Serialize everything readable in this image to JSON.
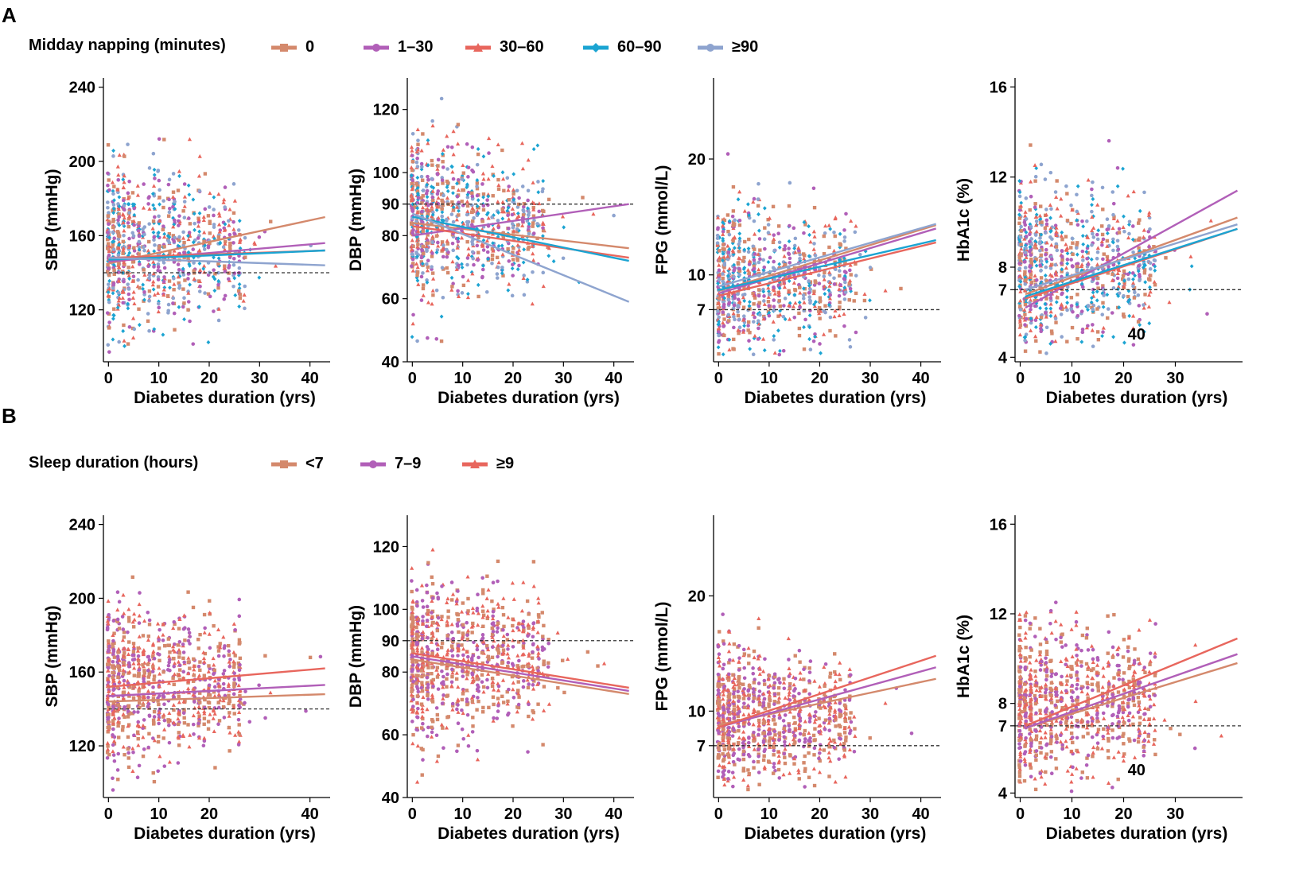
{
  "panels": {
    "A": {
      "label": "A",
      "legend_title": "Midday napping (minutes)",
      "groups": [
        {
          "name": "0",
          "color": "#d4896c",
          "marker": "square"
        },
        {
          "name": "1–30",
          "color": "#b15fb8",
          "marker": "circle"
        },
        {
          "name": "30–60",
          "color": "#e8665d",
          "marker": "triangle"
        },
        {
          "name": "60–90",
          "color": "#1ba4d2",
          "marker": "diamond"
        },
        {
          "name": "≥90",
          "color": "#8ea4cf",
          "marker": "circle"
        }
      ]
    },
    "B": {
      "label": "B",
      "legend_title": "Sleep duration (hours)",
      "groups": [
        {
          "name": "<7",
          "color": "#d4896c",
          "marker": "square"
        },
        {
          "name": "7–9",
          "color": "#b15fb8",
          "marker": "circle"
        },
        {
          "name": "≥9",
          "color": "#e8665d",
          "marker": "triangle"
        }
      ]
    }
  },
  "chart_data": [
    {
      "id": "A-SBP",
      "type": "scatter",
      "xlabel": "Diabetes duration (yrs)",
      "ylabel": "SBP (mmHg)",
      "xlim": [
        -1,
        44
      ],
      "ylim": [
        92,
        245
      ],
      "xticks": [
        0,
        10,
        20,
        30,
        40
      ],
      "yticks": [
        120,
        160,
        200,
        240
      ],
      "reference_y": 140,
      "lines": [
        [
          0,
          145,
          43,
          170
        ],
        [
          0,
          146,
          43,
          156
        ],
        [
          0,
          148,
          43,
          152
        ],
        [
          0,
          147,
          43,
          152
        ],
        [
          0,
          148,
          43,
          144
        ]
      ],
      "point_count": 900,
      "seed": 11,
      "point_dist": {
        "ymean": 153,
        "ysd": 22,
        "xmax": 43
      }
    },
    {
      "id": "A-DBP",
      "type": "scatter",
      "xlabel": "Diabetes duration (yrs)",
      "ylabel": "DBP (mmHg)",
      "xlim": [
        -1,
        44
      ],
      "ylim": [
        40,
        130
      ],
      "xticks": [
        0,
        10,
        20,
        30,
        40
      ],
      "yticks": [
        40,
        60,
        80,
        90,
        100,
        120
      ],
      "reference_y": 90,
      "lines": [
        [
          0,
          84,
          43,
          76
        ],
        [
          0,
          80,
          43,
          90
        ],
        [
          0,
          83,
          43,
          73
        ],
        [
          0,
          86,
          43,
          72
        ],
        [
          0,
          87,
          43,
          59
        ]
      ],
      "point_count": 900,
      "seed": 23,
      "point_dist": {
        "ymean": 84,
        "ysd": 13,
        "xmax": 43
      }
    },
    {
      "id": "A-FPG",
      "type": "scatter",
      "xlabel": "Diabetes duration (yrs)",
      "ylabel": "FPG (mmol/L)",
      "xlim": [
        -1,
        44
      ],
      "ylim": [
        2.5,
        27
      ],
      "xticks": [
        0,
        10,
        20,
        30,
        40
      ],
      "yticks": [
        7,
        10,
        20
      ],
      "reference_y": 7,
      "lines": [
        [
          0,
          8.6,
          43,
          14.3
        ],
        [
          0,
          8.4,
          43,
          14.0
        ],
        [
          0,
          8.2,
          43,
          12.8
        ],
        [
          0,
          8.7,
          43,
          13.0
        ],
        [
          0,
          9.0,
          43,
          14.4
        ]
      ],
      "point_count": 900,
      "seed": 37,
      "point_dist": {
        "ymean": 9.5,
        "ysd": 3.3,
        "xmax": 43
      }
    },
    {
      "id": "A-HbA1c",
      "type": "scatter",
      "xlabel": "Diabetes duration (yrs)",
      "ylabel": "HbA1c (%)",
      "xlim": [
        -1,
        43
      ],
      "ylim": [
        3.8,
        16.4
      ],
      "xticks": [
        0,
        10,
        20,
        30
      ],
      "yticks": [
        4,
        7,
        8,
        12,
        16
      ],
      "reference_y": 7,
      "extra_label": "40",
      "lines": [
        [
          1,
          6.8,
          42,
          10.2
        ],
        [
          1,
          6.2,
          42,
          11.4
        ],
        [
          1,
          6.6,
          42,
          9.7
        ],
        [
          1,
          6.7,
          42,
          9.7
        ],
        [
          1,
          7.0,
          42,
          9.9
        ]
      ],
      "point_count": 900,
      "seed": 51,
      "point_dist": {
        "ymean": 8.0,
        "ysd": 1.8,
        "xmax": 42
      }
    },
    {
      "id": "B-SBP",
      "type": "scatter",
      "xlabel": "Diabetes duration (yrs)",
      "ylabel": "SBP (mmHg)",
      "xlim": [
        -1,
        44
      ],
      "ylim": [
        92,
        245
      ],
      "xticks": [
        0,
        10,
        20,
        40
      ],
      "yticks": [
        120,
        160,
        200,
        240
      ],
      "reference_y": 140,
      "lines": [
        [
          0,
          144,
          43,
          148
        ],
        [
          0,
          147,
          43,
          153
        ],
        [
          0,
          152,
          43,
          162
        ]
      ],
      "point_count": 900,
      "seed": 67,
      "point_dist": {
        "ymean": 153,
        "ysd": 22,
        "xmax": 43
      }
    },
    {
      "id": "B-DBP",
      "type": "scatter",
      "xlabel": "Diabetes duration (yrs)",
      "ylabel": "DBP (mmHg)",
      "xlim": [
        -1,
        44
      ],
      "ylim": [
        40,
        130
      ],
      "xticks": [
        0,
        10,
        20,
        30,
        40
      ],
      "yticks": [
        40,
        60,
        80,
        90,
        100,
        120
      ],
      "reference_y": 90,
      "lines": [
        [
          0,
          84,
          43,
          73
        ],
        [
          0,
          85,
          43,
          74
        ],
        [
          0,
          86,
          43,
          75
        ]
      ],
      "point_count": 900,
      "seed": 79,
      "point_dist": {
        "ymean": 84,
        "ysd": 13,
        "xmax": 43
      }
    },
    {
      "id": "B-FPG",
      "type": "scatter",
      "xlabel": "Diabetes duration (yrs)",
      "ylabel": "FPG (mmol/L)",
      "xlim": [
        -1,
        44
      ],
      "ylim": [
        2.5,
        27
      ],
      "xticks": [
        0,
        10,
        20,
        30,
        40
      ],
      "yticks": [
        7,
        10,
        20
      ],
      "reference_y": 7,
      "lines": [
        [
          0,
          8.8,
          43,
          12.8
        ],
        [
          0,
          8.6,
          43,
          13.8
        ],
        [
          0,
          8.6,
          43,
          14.8
        ]
      ],
      "point_count": 900,
      "seed": 91,
      "point_dist": {
        "ymean": 9.5,
        "ysd": 3.3,
        "xmax": 43
      }
    },
    {
      "id": "B-HbA1c",
      "type": "scatter",
      "xlabel": "Diabetes duration (yrs)",
      "ylabel": "HbA1c (%)",
      "xlim": [
        -1,
        43
      ],
      "ylim": [
        3.8,
        16.4
      ],
      "xticks": [
        0,
        10,
        20,
        30
      ],
      "yticks": [
        4,
        7,
        8,
        12,
        16
      ],
      "reference_y": 7,
      "extra_label": "40",
      "lines": [
        [
          1,
          6.9,
          42,
          9.8
        ],
        [
          1,
          6.9,
          42,
          10.2
        ],
        [
          1,
          7.0,
          42,
          10.9
        ]
      ],
      "point_count": 900,
      "seed": 103,
      "point_dist": {
        "ymean": 8.0,
        "ysd": 1.8,
        "xmax": 42
      }
    }
  ]
}
